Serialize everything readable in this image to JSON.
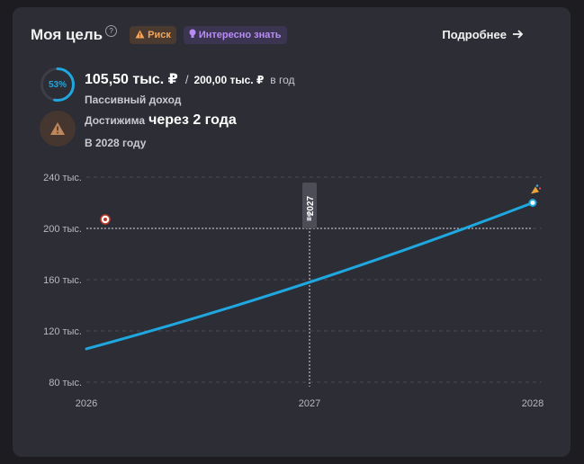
{
  "header": {
    "title": "Моя цель",
    "help_glyph": "?",
    "badge_risk": "Риск",
    "badge_info": "Интересно знать",
    "more_link": "Подробнее"
  },
  "goal": {
    "progress_percent": 53,
    "progress_label": "53%",
    "current": "105,50 тыс. ₽",
    "separator": "/",
    "target": "200,00 тыс. ₽",
    "period": "в год",
    "current_label": "Пассивный доход",
    "reach_prefix": "Достижима",
    "reach_main": "через 2 года",
    "reach_year": "В 2028 году"
  },
  "colors": {
    "accent": "#1fa7e0",
    "risk": "#f2a55b",
    "info": "#b98cf5",
    "card_bg": "#2c2d35",
    "page_bg": "#1c1c21"
  },
  "icons": {
    "help": "question-circle-icon",
    "risk": "warning-triangle-icon",
    "info": "lightbulb-icon",
    "more": "arrow-right-icon",
    "target": "target-icon",
    "end": "party-popper-icon",
    "marker": "chess-pawn-icon"
  },
  "chart_data": {
    "type": "line",
    "x_ticks": [
      "2026",
      "2027",
      "2028"
    ],
    "y_ticks": [
      "240 тыс.",
      "200 тыс.",
      "160 тыс.",
      "120 тыс.",
      "80 тыс."
    ],
    "y_tick_values": [
      240000,
      200000,
      160000,
      120000,
      80000
    ],
    "ylim": [
      80000,
      240000
    ],
    "xlim": [
      2026,
      2028
    ],
    "goal_value": 200000,
    "highlight_label": "2027",
    "highlight_x": 2027,
    "series": [
      {
        "x": [
          2026,
          2027,
          2028
        ],
        "y": [
          106000,
          158000,
          220000
        ]
      }
    ],
    "grid": true
  }
}
